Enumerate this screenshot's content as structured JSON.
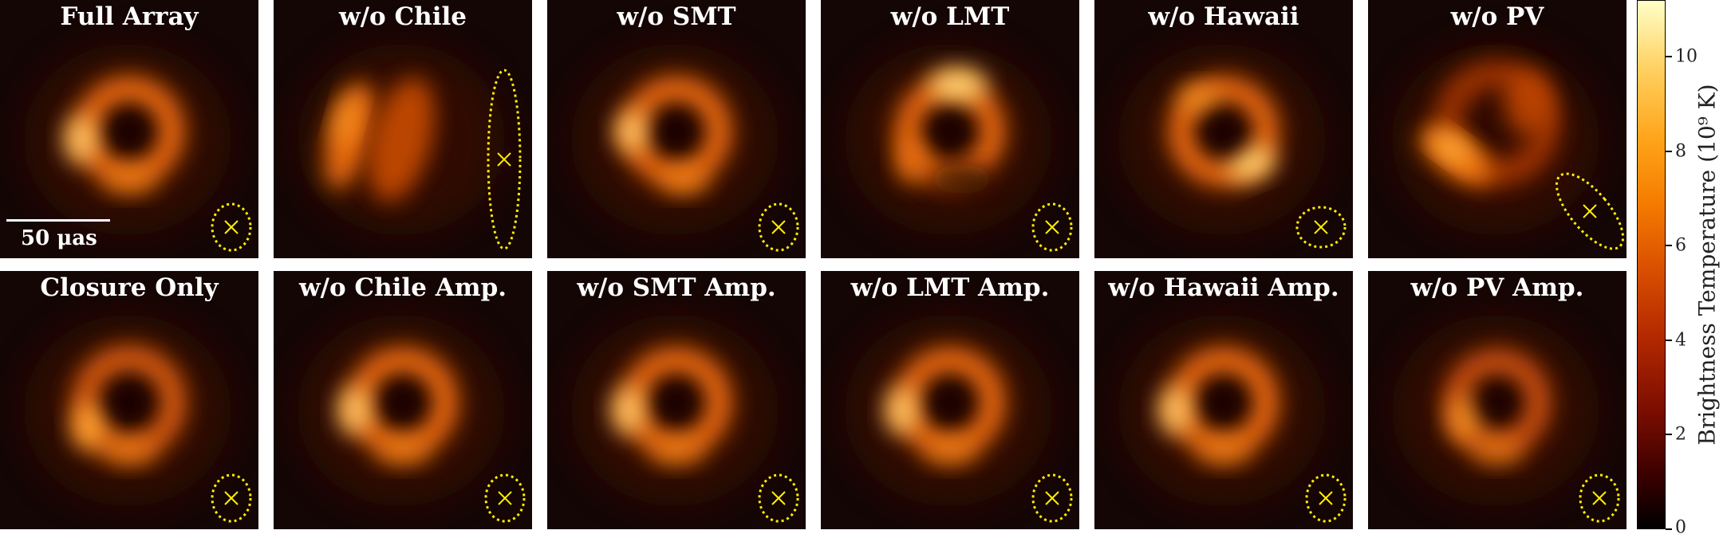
{
  "panels": [
    {
      "title": "Full Array",
      "variant": "full",
      "beam": {
        "cx": 290,
        "cy": 285,
        "rx": 24,
        "ry": 29,
        "angle": 0
      }
    },
    {
      "title": "w/o Chile",
      "variant": "chile",
      "beam": {
        "cx": 289,
        "cy": 200,
        "rx": 20,
        "ry": 112,
        "angle": 0
      }
    },
    {
      "title": "w/o SMT",
      "variant": "smt",
      "beam": {
        "cx": 290,
        "cy": 285,
        "rx": 24,
        "ry": 29,
        "angle": 0
      }
    },
    {
      "title": "w/o LMT",
      "variant": "lmt",
      "beam": {
        "cx": 290,
        "cy": 285,
        "rx": 24,
        "ry": 29,
        "angle": 0
      }
    },
    {
      "title": "w/o Hawaii",
      "variant": "hawaii",
      "beam": {
        "cx": 284,
        "cy": 285,
        "rx": 30,
        "ry": 25,
        "angle": 0
      }
    },
    {
      "title": "w/o PV",
      "variant": "pv",
      "beam": {
        "cx": 278,
        "cy": 265,
        "rx": 24,
        "ry": 58,
        "angle": -40
      }
    },
    {
      "title": "Closure Only",
      "variant": "closure",
      "beam": {
        "cx": 290,
        "cy": 285,
        "rx": 24,
        "ry": 29,
        "angle": 0
      }
    },
    {
      "title": "w/o Chile Amp.",
      "variant": "amp",
      "beam": {
        "cx": 290,
        "cy": 285,
        "rx": 24,
        "ry": 29,
        "angle": 0
      }
    },
    {
      "title": "w/o SMT Amp.",
      "variant": "amp",
      "beam": {
        "cx": 290,
        "cy": 285,
        "rx": 24,
        "ry": 29,
        "angle": 0
      }
    },
    {
      "title": "w/o LMT Amp.",
      "variant": "amp",
      "beam": {
        "cx": 290,
        "cy": 285,
        "rx": 24,
        "ry": 29,
        "angle": 0
      }
    },
    {
      "title": "w/o Hawaii Amp.",
      "variant": "amp",
      "beam": {
        "cx": 290,
        "cy": 285,
        "rx": 24,
        "ry": 29,
        "angle": 0
      }
    },
    {
      "title": "w/o PV Amp.",
      "variant": "pvamp",
      "beam": {
        "cx": 290,
        "cy": 285,
        "rx": 24,
        "ry": 29,
        "angle": 0
      }
    }
  ],
  "scalebar": {
    "label": "50 μas"
  },
  "colorbar": {
    "label": "Brightness Temperature (10⁹ K)",
    "min": 0,
    "max": 11.2,
    "ticks": [
      {
        "value": 0,
        "label": "0"
      },
      {
        "value": 2,
        "label": "2"
      },
      {
        "value": 4,
        "label": "4"
      },
      {
        "value": 6,
        "label": "6"
      },
      {
        "value": 8,
        "label": "8"
      },
      {
        "value": 10,
        "label": "10"
      }
    ]
  },
  "colors": {
    "beam": "#ffee00",
    "background": "#140604"
  }
}
